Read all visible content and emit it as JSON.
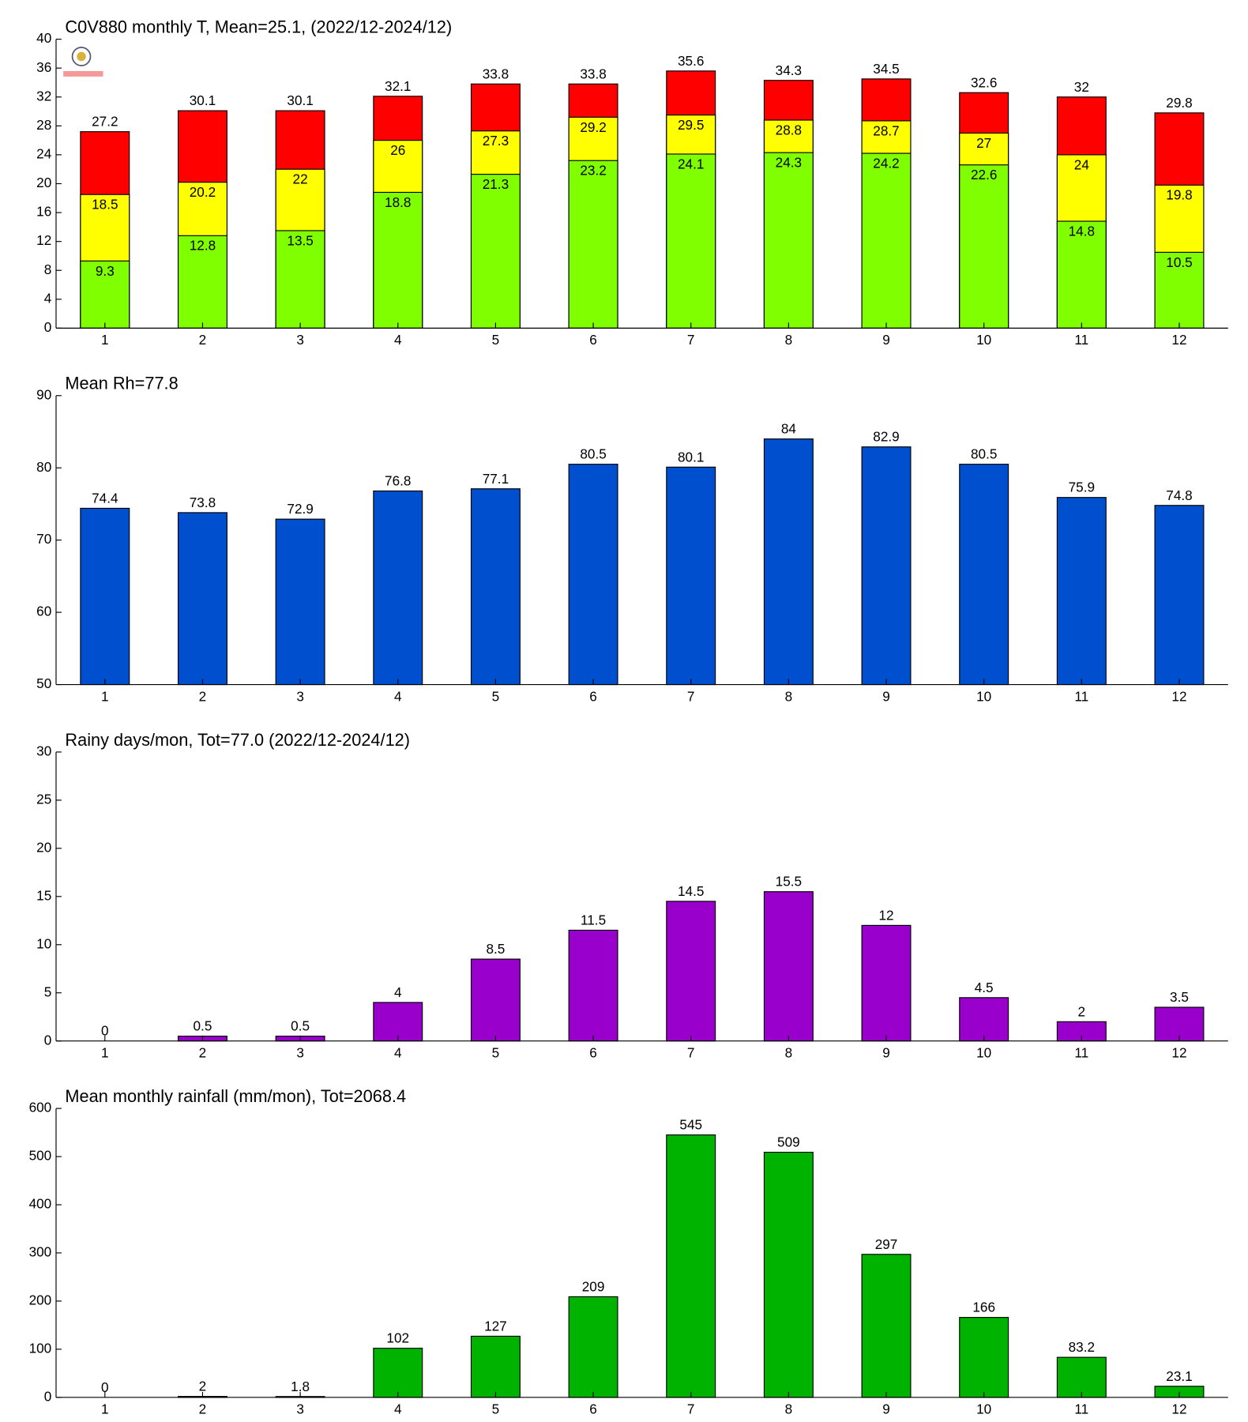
{
  "chart_data": [
    {
      "type": "bar",
      "title": "C0V880 monthly T, Mean=25.1, (2022/12-2024/12)",
      "categories": [
        "1",
        "2",
        "3",
        "4",
        "5",
        "6",
        "7",
        "8",
        "9",
        "10",
        "11",
        "12"
      ],
      "series": [
        {
          "color": "#ff0000",
          "values": [
            27.2,
            30.1,
            30.1,
            32.1,
            33.8,
            33.8,
            35.6,
            34.3,
            34.5,
            32.6,
            32,
            29.8
          ]
        },
        {
          "color": "#ffff00",
          "values": [
            18.5,
            20.2,
            22,
            26,
            27.3,
            29.2,
            29.5,
            28.8,
            28.7,
            27,
            24,
            19.8
          ]
        },
        {
          "color": "#80ff00",
          "values": [
            9.3,
            12.8,
            13.5,
            18.8,
            21.3,
            23.2,
            24.1,
            24.3,
            24.2,
            22.6,
            14.8,
            10.5
          ]
        }
      ],
      "ylim": [
        0,
        40
      ],
      "yticks": [
        0,
        4,
        8,
        12,
        16,
        20,
        24,
        28,
        32,
        36,
        40
      ]
    },
    {
      "type": "bar",
      "title": "Mean Rh=77.8",
      "categories": [
        "1",
        "2",
        "3",
        "4",
        "5",
        "6",
        "7",
        "8",
        "9",
        "10",
        "11",
        "12"
      ],
      "series": [
        {
          "color": "#004fcf",
          "values": [
            74.4,
            73.8,
            72.9,
            76.8,
            77.1,
            80.5,
            80.1,
            84,
            82.9,
            80.5,
            75.9,
            74.8
          ]
        }
      ],
      "ylim": [
        50,
        90
      ],
      "yticks": [
        50,
        60,
        70,
        80,
        90
      ]
    },
    {
      "type": "bar",
      "title": "Rainy days/mon, Tot=77.0 (2022/12-2024/12)",
      "categories": [
        "1",
        "2",
        "3",
        "4",
        "5",
        "6",
        "7",
        "8",
        "9",
        "10",
        "11",
        "12"
      ],
      "series": [
        {
          "color": "#9900cc",
          "values": [
            0,
            0.5,
            0.5,
            4,
            8.5,
            11.5,
            14.5,
            15.5,
            12,
            4.5,
            2,
            3.5
          ]
        }
      ],
      "ylim": [
        0,
        30
      ],
      "yticks": [
        0,
        5,
        10,
        15,
        20,
        25,
        30
      ]
    },
    {
      "type": "bar",
      "title": "Mean monthly rainfall (mm/mon), Tot=2068.4",
      "categories": [
        "1",
        "2",
        "3",
        "4",
        "5",
        "6",
        "7",
        "8",
        "9",
        "10",
        "11",
        "12"
      ],
      "series": [
        {
          "color": "#00b300",
          "values": [
            0,
            2,
            1.8,
            102,
            127,
            209,
            545,
            509,
            297,
            166,
            83.2,
            23.1
          ]
        }
      ],
      "ylim": [
        0,
        600
      ],
      "yticks": [
        0,
        100,
        200,
        300,
        400,
        500,
        600
      ]
    }
  ]
}
